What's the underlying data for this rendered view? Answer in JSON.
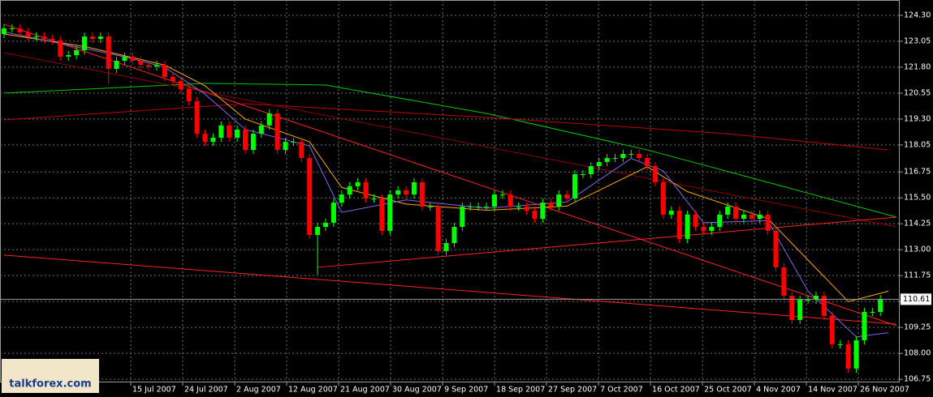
{
  "chart_data": {
    "type": "candlestick",
    "xlim": [
      -0.5,
      111.4
    ],
    "ylim": [
      106.6,
      125.04
    ],
    "yticks": [
      {
        "value": 124.3,
        "label": "124.30"
      },
      {
        "value": 123.05,
        "label": "123.05"
      },
      {
        "value": 121.8,
        "label": "121.80"
      },
      {
        "value": 120.55,
        "label": "120.55"
      },
      {
        "value": 119.3,
        "label": "119.30"
      },
      {
        "value": 118.05,
        "label": "118.05"
      },
      {
        "value": 116.75,
        "label": "116.75"
      },
      {
        "value": 115.5,
        "label": "115.50"
      },
      {
        "value": 114.25,
        "label": "114.25"
      },
      {
        "value": 113.0,
        "label": "113.00"
      },
      {
        "value": 111.75,
        "label": "111.75"
      },
      {
        "value": 110.5,
        "label": "110.50"
      },
      {
        "value": 109.25,
        "label": "109.25"
      },
      {
        "value": 108.0,
        "label": "108.00"
      },
      {
        "value": 106.75,
        "label": "106.75"
      }
    ],
    "xticks": [
      {
        "value": 15.76,
        "label": "15 Jul 2007"
      },
      {
        "value": 22.22,
        "label": "24 Jul 2007"
      },
      {
        "value": 28.69,
        "label": "2 Aug 2007"
      },
      {
        "value": 35.15,
        "label": "12 Aug 2007"
      },
      {
        "value": 41.62,
        "label": "21 Aug 2007"
      },
      {
        "value": 48.08,
        "label": "30 Aug 2007"
      },
      {
        "value": 54.55,
        "label": "9 Sep 2007"
      },
      {
        "value": 61.01,
        "label": "18 Sep 2007"
      },
      {
        "value": 67.47,
        "label": "27 Sep 2007"
      },
      {
        "value": 73.94,
        "label": "7 Oct 2007"
      },
      {
        "value": 80.4,
        "label": "16 Oct 2007"
      },
      {
        "value": 86.87,
        "label": "25 Oct 2007"
      },
      {
        "value": 93.33,
        "label": "4 Nov 2007"
      },
      {
        "value": 99.8,
        "label": "14 Nov 2007"
      },
      {
        "value": 106.26,
        "label": "26 Nov 2007"
      }
    ],
    "grid": true,
    "up_color": "#00ff00",
    "down_color": "#ff0000",
    "last_price": 110.61,
    "watermark": "talkforex.com",
    "open": [
      123.4,
      123.67,
      123.67,
      123.48,
      123.28,
      123.28,
      123.16,
      123.09,
      122.31,
      122.38,
      122.62,
      123.28,
      123.16,
      123.28,
      121.72,
      122.11,
      122.31,
      122.11,
      121.91,
      121.84,
      121.91,
      121.33,
      121.13,
      120.74,
      120.16,
      118.59,
      118.2,
      118.4,
      118.99,
      118.4,
      118.79,
      117.81,
      118.59,
      118.99,
      119.57,
      117.81,
      118.2,
      118.2,
      117.42,
      113.71,
      114.1,
      114.3,
      115.27,
      115.66,
      116.06,
      116.25,
      115.47,
      115.47,
      113.91,
      115.66,
      115.86,
      115.66,
      116.25,
      115.08,
      115.08,
      112.93,
      113.32,
      114.1,
      115.08,
      115.08,
      115.08,
      115.08,
      115.66,
      115.66,
      115.08,
      115.08,
      114.88,
      114.49,
      115.27,
      115.08,
      115.66,
      115.47,
      116.64,
      116.64,
      117.03,
      117.23,
      117.42,
      117.42,
      117.62,
      117.62,
      117.42,
      117.03,
      116.25,
      114.69,
      114.88,
      113.52,
      114.69,
      114.1,
      113.91,
      114.1,
      114.69,
      115.08,
      114.49,
      114.69,
      114.49,
      114.69,
      113.91,
      112.15,
      110.78,
      109.61,
      110.59,
      110.59,
      110.78,
      109.81,
      108.44,
      108.44,
      107.27,
      108.63,
      110.0,
      110.0
    ],
    "high": [
      123.87,
      123.87,
      123.87,
      123.68,
      123.48,
      123.48,
      123.36,
      123.29,
      122.58,
      122.82,
      123.48,
      123.48,
      123.48,
      123.48,
      122.31,
      122.51,
      122.51,
      122.31,
      122.11,
      122.11,
      122.11,
      121.53,
      121.33,
      120.94,
      120.36,
      118.79,
      118.6,
      119.19,
      119.19,
      118.99,
      118.99,
      118.79,
      119.19,
      119.77,
      119.77,
      118.4,
      118.4,
      118.4,
      117.62,
      114.3,
      114.5,
      115.47,
      115.86,
      116.26,
      116.45,
      116.45,
      115.67,
      115.67,
      115.86,
      116.06,
      116.06,
      116.45,
      116.45,
      115.28,
      115.28,
      113.52,
      114.3,
      115.28,
      115.28,
      115.28,
      115.28,
      115.86,
      115.86,
      115.86,
      115.28,
      115.28,
      115.08,
      115.47,
      115.47,
      115.86,
      115.86,
      116.84,
      116.84,
      117.23,
      117.43,
      117.62,
      117.62,
      117.82,
      117.82,
      117.82,
      117.62,
      117.23,
      116.45,
      115.08,
      115.08,
      114.89,
      114.89,
      114.3,
      114.3,
      114.89,
      115.28,
      115.28,
      114.89,
      114.89,
      114.89,
      114.89,
      114.11,
      112.35,
      110.98,
      110.79,
      110.79,
      110.98,
      110.98,
      110.01,
      108.64,
      108.64,
      108.83,
      110.2,
      110.2,
      110.81
    ],
    "low": [
      123.2,
      123.47,
      123.28,
      123.08,
      123.08,
      122.96,
      122.89,
      122.11,
      122.11,
      122.18,
      122.42,
      122.96,
      122.96,
      121.0,
      121.52,
      121.91,
      121.91,
      121.71,
      121.64,
      121.64,
      121.13,
      120.93,
      120.54,
      119.96,
      118.39,
      118.0,
      118.0,
      118.2,
      118.2,
      118.2,
      117.61,
      117.61,
      118.39,
      118.79,
      117.61,
      117.61,
      118.0,
      117.22,
      113.51,
      111.8,
      113.9,
      114.1,
      115.07,
      115.46,
      115.86,
      115.27,
      115.27,
      113.71,
      113.71,
      115.46,
      115.46,
      115.46,
      114.88,
      114.88,
      112.73,
      112.73,
      113.12,
      113.9,
      114.88,
      114.88,
      114.88,
      114.88,
      115.46,
      114.88,
      114.88,
      114.68,
      114.29,
      114.29,
      114.88,
      114.88,
      115.27,
      115.27,
      116.44,
      116.44,
      116.83,
      117.03,
      117.22,
      117.22,
      117.42,
      117.22,
      116.83,
      116.05,
      114.49,
      114.49,
      113.32,
      113.32,
      113.9,
      113.71,
      113.71,
      113.9,
      114.49,
      114.29,
      114.29,
      114.29,
      114.29,
      113.71,
      111.95,
      110.58,
      109.41,
      109.41,
      110.39,
      110.39,
      109.61,
      108.24,
      108.24,
      107.07,
      107.07,
      108.43,
      109.8,
      109.8
    ],
    "close": [
      123.67,
      123.67,
      123.48,
      123.28,
      123.28,
      123.16,
      123.09,
      122.31,
      122.38,
      122.62,
      123.28,
      123.16,
      123.28,
      121.72,
      122.11,
      122.31,
      122.11,
      121.91,
      121.84,
      121.91,
      121.33,
      121.13,
      120.74,
      120.16,
      118.59,
      118.2,
      118.4,
      118.99,
      118.4,
      118.79,
      117.81,
      118.59,
      118.99,
      119.57,
      117.81,
      118.2,
      118.2,
      117.42,
      113.71,
      114.1,
      114.3,
      115.27,
      115.66,
      116.06,
      116.25,
      115.47,
      115.47,
      113.91,
      115.66,
      115.86,
      115.66,
      116.25,
      115.08,
      115.08,
      112.93,
      113.32,
      114.1,
      115.08,
      115.08,
      115.08,
      115.08,
      115.66,
      115.66,
      115.08,
      115.08,
      114.88,
      114.49,
      115.27,
      115.08,
      115.66,
      115.47,
      116.64,
      116.64,
      117.03,
      117.23,
      117.42,
      117.42,
      117.62,
      117.62,
      117.42,
      117.03,
      116.25,
      114.69,
      114.88,
      113.52,
      114.69,
      114.1,
      113.91,
      114.1,
      114.69,
      115.08,
      114.49,
      114.69,
      114.49,
      114.69,
      113.91,
      112.15,
      110.78,
      109.61,
      110.59,
      110.59,
      110.78,
      109.81,
      108.44,
      108.44,
      107.27,
      108.63,
      110.0,
      110.0,
      110.61
    ],
    "overlays": [
      {
        "color": "#00c800",
        "x": [
          0,
          25,
          40,
          60,
          80,
          95,
          111
        ],
        "values": [
          120.55,
          121.02,
          120.94,
          119.57,
          117.81,
          116.25,
          114.57
        ]
      },
      {
        "color": "#c00000",
        "x": [
          0,
          30,
          60,
          90,
          110
        ],
        "values": [
          119.26,
          120.04,
          119.38,
          118.59,
          117.81
        ]
      },
      {
        "color": "#8b0000",
        "x": [
          0,
          111
        ],
        "values": [
          122.5,
          114.1
        ]
      },
      {
        "color": "#ff2020",
        "x": [
          0,
          111
        ],
        "values": [
          123.87,
          109.34
        ]
      },
      {
        "color": "#ff2020",
        "x": [
          0,
          111
        ],
        "values": [
          112.74,
          109.41
        ]
      },
      {
        "color": "#ff2020",
        "x": [
          39,
          111
        ],
        "values": [
          112.15,
          114.57
        ]
      },
      {
        "color": "#ffa500",
        "x": [
          0,
          10,
          20,
          25,
          30,
          38,
          42,
          50,
          60,
          70,
          80,
          85,
          95,
          100,
          105,
          110
        ],
        "values": [
          123.4,
          122.8,
          121.9,
          120.9,
          119.3,
          118.2,
          116.0,
          115.2,
          114.9,
          115.1,
          117.0,
          115.8,
          114.5,
          112.5,
          110.5,
          111.0
        ]
      },
      {
        "color": "#7b68ee",
        "x": [
          0,
          10,
          15,
          20,
          25,
          30,
          38,
          42,
          50,
          60,
          70,
          78,
          82,
          87,
          95,
          100,
          106,
          110
        ],
        "values": [
          123.5,
          122.7,
          122.3,
          121.8,
          120.5,
          118.8,
          118.0,
          114.8,
          115.4,
          115.0,
          115.3,
          117.4,
          116.8,
          114.3,
          114.4,
          111.0,
          108.8,
          109.0
        ]
      }
    ]
  }
}
